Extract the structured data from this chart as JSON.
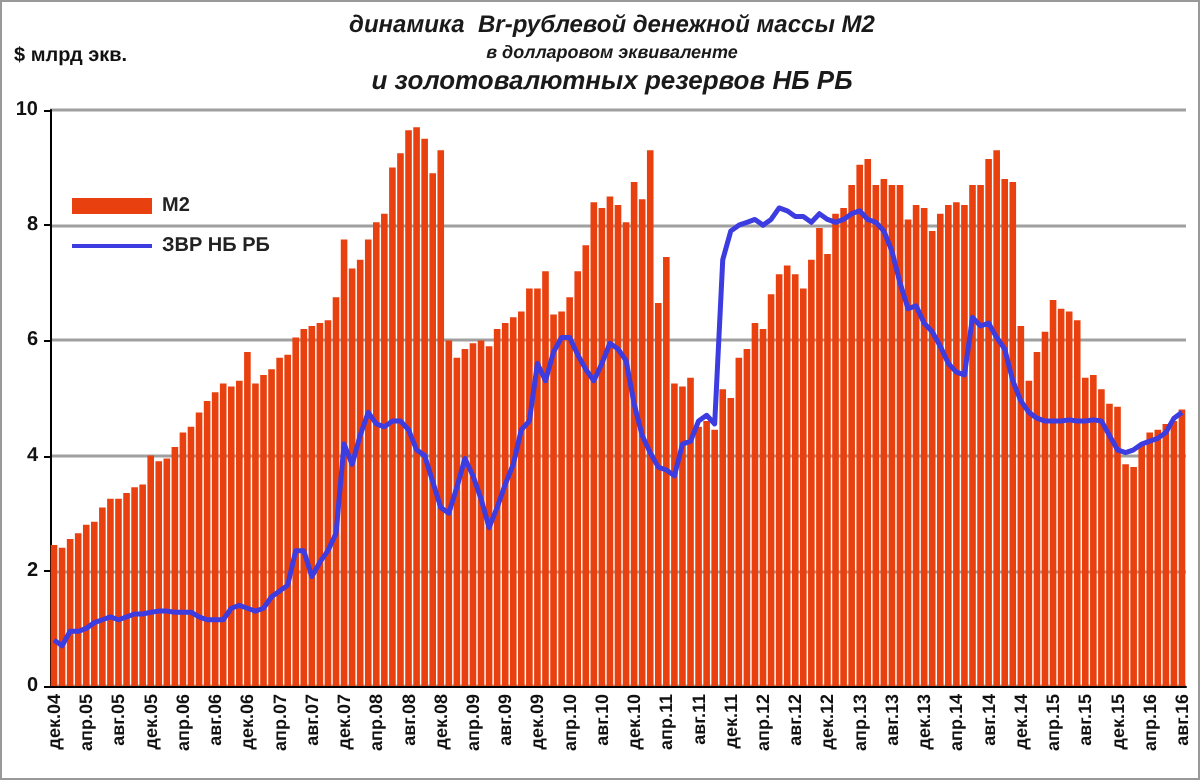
{
  "chart_data": {
    "type": "bar",
    "title": "динамика  Br-рублевой денежной массы М2",
    "subtitle": "в долларовом эквиваленте\nи золотовалютных резервов НБ РБ",
    "ylabel": "$ млрд экв.",
    "categories": [
      "дек.04",
      null,
      null,
      null,
      "апр.05",
      null,
      null,
      null,
      "авг.05",
      null,
      null,
      null,
      "дек.05",
      null,
      null,
      null,
      "апр.06",
      null,
      null,
      null,
      "авг.06",
      null,
      null,
      null,
      "дек.06",
      null,
      null,
      null,
      "апр.07",
      null,
      null,
      null,
      "авг.07",
      null,
      null,
      null,
      "дек.07",
      null,
      null,
      null,
      "апр.08",
      null,
      null,
      null,
      "авг.08",
      null,
      null,
      null,
      "дек.08",
      null,
      null,
      null,
      "апр.09",
      null,
      null,
      null,
      "авг.09",
      null,
      null,
      null,
      "дек.09",
      null,
      null,
      null,
      "апр.10",
      null,
      null,
      null,
      "авг.10",
      null,
      null,
      null,
      "дек.10",
      null,
      null,
      null,
      "апр.11",
      null,
      null,
      null,
      "авг.11",
      null,
      null,
      null,
      "дек.11",
      null,
      null,
      null,
      "апр.12",
      null,
      null,
      null,
      "авг.12",
      null,
      null,
      null,
      "дек.12",
      null,
      null,
      null,
      "апр.13",
      null,
      null,
      null,
      "авг.13",
      null,
      null,
      null,
      "дек.13",
      null,
      null,
      null,
      "апр.14",
      null,
      null,
      null,
      "авг.14",
      null,
      null,
      null,
      "дек.14",
      null,
      null,
      null,
      "апр.15",
      null,
      null,
      null,
      "авг.15",
      null,
      null,
      null,
      "дек.15",
      null,
      null,
      null,
      "апр.16",
      null,
      null,
      null,
      "авг.16"
    ],
    "series": [
      {
        "name": "М2",
        "color": "#e8400e",
        "values": [
          2.45,
          2.4,
          2.55,
          2.65,
          2.8,
          2.85,
          3.1,
          3.25,
          3.25,
          3.35,
          3.45,
          3.5,
          4.0,
          3.9,
          3.95,
          4.15,
          4.4,
          4.5,
          4.75,
          4.95,
          5.1,
          5.25,
          5.2,
          5.3,
          5.8,
          5.25,
          5.4,
          5.5,
          5.7,
          5.75,
          6.05,
          6.2,
          6.25,
          6.3,
          6.35,
          6.75,
          7.75,
          7.25,
          7.4,
          7.75,
          8.05,
          8.2,
          9.0,
          9.25,
          9.65,
          9.7,
          9.5,
          8.9,
          9.3,
          6.0,
          5.7,
          5.85,
          5.95,
          6.0,
          5.9,
          6.2,
          6.3,
          6.4,
          6.5,
          6.9,
          6.9,
          7.2,
          6.45,
          6.5,
          6.75,
          7.2,
          7.65,
          8.4,
          8.3,
          8.5,
          8.35,
          8.05,
          8.75,
          8.45,
          9.3,
          6.65,
          7.45,
          5.25,
          5.2,
          5.35,
          4.5,
          4.6,
          4.45,
          5.15,
          5.0,
          5.7,
          5.85,
          6.3,
          6.2,
          6.8,
          7.15,
          7.3,
          7.15,
          6.9,
          7.4,
          7.95,
          7.5,
          8.2,
          8.3,
          8.7,
          9.05,
          9.15,
          8.7,
          8.8,
          8.7,
          8.7,
          8.1,
          8.35,
          8.3,
          7.9,
          8.2,
          8.35,
          8.4,
          8.35,
          8.7,
          8.7,
          9.15,
          9.3,
          8.8,
          8.75,
          6.25,
          5.3,
          5.8,
          6.15,
          6.7,
          6.55,
          6.5,
          6.35,
          5.35,
          5.4,
          5.15,
          4.9,
          4.85,
          3.85,
          3.8,
          4.2,
          4.4,
          4.45,
          4.55,
          4.6,
          4.8
        ]
      },
      {
        "name": "ЗВР НБ РБ",
        "type": "line",
        "color": "#3c3ce0",
        "values": [
          0.8,
          0.7,
          0.95,
          0.95,
          1.0,
          1.1,
          1.15,
          1.2,
          1.15,
          1.2,
          1.25,
          1.25,
          1.28,
          1.3,
          1.3,
          1.28,
          1.28,
          1.28,
          1.2,
          1.15,
          1.15,
          1.15,
          1.35,
          1.4,
          1.35,
          1.3,
          1.35,
          1.55,
          1.65,
          1.75,
          2.35,
          2.35,
          1.9,
          2.15,
          2.35,
          2.65,
          4.2,
          3.85,
          4.35,
          4.75,
          4.55,
          4.5,
          4.6,
          4.6,
          4.45,
          4.1,
          4.0,
          3.55,
          3.1,
          3.0,
          3.45,
          3.95,
          3.65,
          3.25,
          2.75,
          3.1,
          3.5,
          3.85,
          4.45,
          4.6,
          5.6,
          5.3,
          5.8,
          6.05,
          6.05,
          5.75,
          5.5,
          5.3,
          5.6,
          5.95,
          5.85,
          5.65,
          4.9,
          4.35,
          4.05,
          3.8,
          3.75,
          3.65,
          4.2,
          4.25,
          4.6,
          4.7,
          4.55,
          7.4,
          7.9,
          8.0,
          8.05,
          8.1,
          8.0,
          8.1,
          8.3,
          8.25,
          8.15,
          8.15,
          8.05,
          8.2,
          8.1,
          8.05,
          8.1,
          8.2,
          8.25,
          8.1,
          8.05,
          7.9,
          7.55,
          7.0,
          6.55,
          6.6,
          6.3,
          6.15,
          5.9,
          5.6,
          5.45,
          5.4,
          6.4,
          6.25,
          6.3,
          6.05,
          5.85,
          5.3,
          4.95,
          4.75,
          4.65,
          4.6,
          4.6,
          4.6,
          4.62,
          4.6,
          4.6,
          4.62,
          4.6,
          4.35,
          4.1,
          4.05,
          4.1,
          4.2,
          4.25,
          4.3,
          4.4,
          4.65,
          4.75
        ]
      }
    ],
    "ylim": [
      0,
      10
    ],
    "yticks": [
      0,
      2,
      4,
      6,
      8,
      10
    ],
    "grid": "y",
    "legend": "top left",
    "line_style": "solid",
    "marker": "none"
  }
}
